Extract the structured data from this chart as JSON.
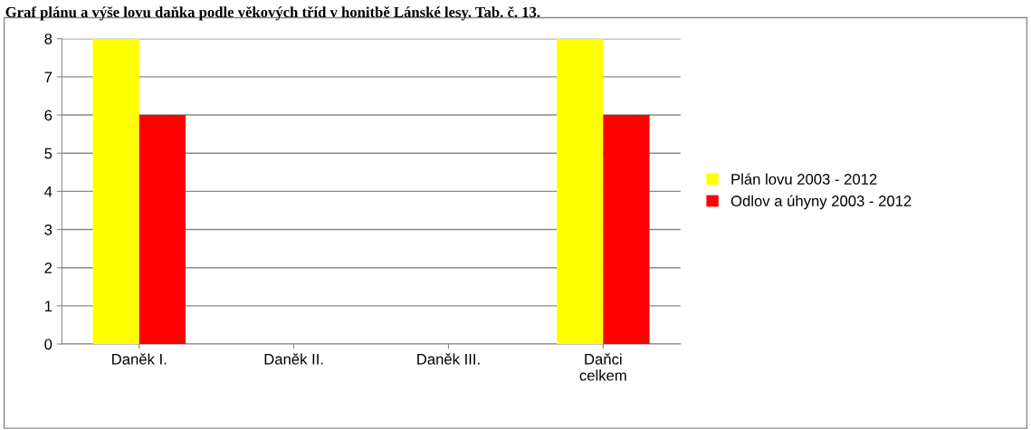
{
  "chart_data": {
    "type": "bar",
    "title": "Graf plánu a výše lovu daňka podle věkových tříd v honitbě Lánské lesy. Tab. č. 13.",
    "categories": [
      "Daněk I.",
      "Daněk II.",
      "Daněk III.",
      "Daňci\ncelkem"
    ],
    "series": [
      {
        "name": "Plán lovu 2003 - 2012",
        "color": "#ffff00",
        "values": [
          8,
          0,
          0,
          8
        ]
      },
      {
        "name": "Odlov a úhyny 2003 - 2012",
        "color": "#ff0000",
        "values": [
          6,
          0,
          0,
          6
        ]
      }
    ],
    "ylim": [
      0,
      8
    ],
    "yticks": [
      0,
      1,
      2,
      3,
      4,
      5,
      6,
      7,
      8
    ],
    "grid": "y",
    "legend": "right"
  }
}
